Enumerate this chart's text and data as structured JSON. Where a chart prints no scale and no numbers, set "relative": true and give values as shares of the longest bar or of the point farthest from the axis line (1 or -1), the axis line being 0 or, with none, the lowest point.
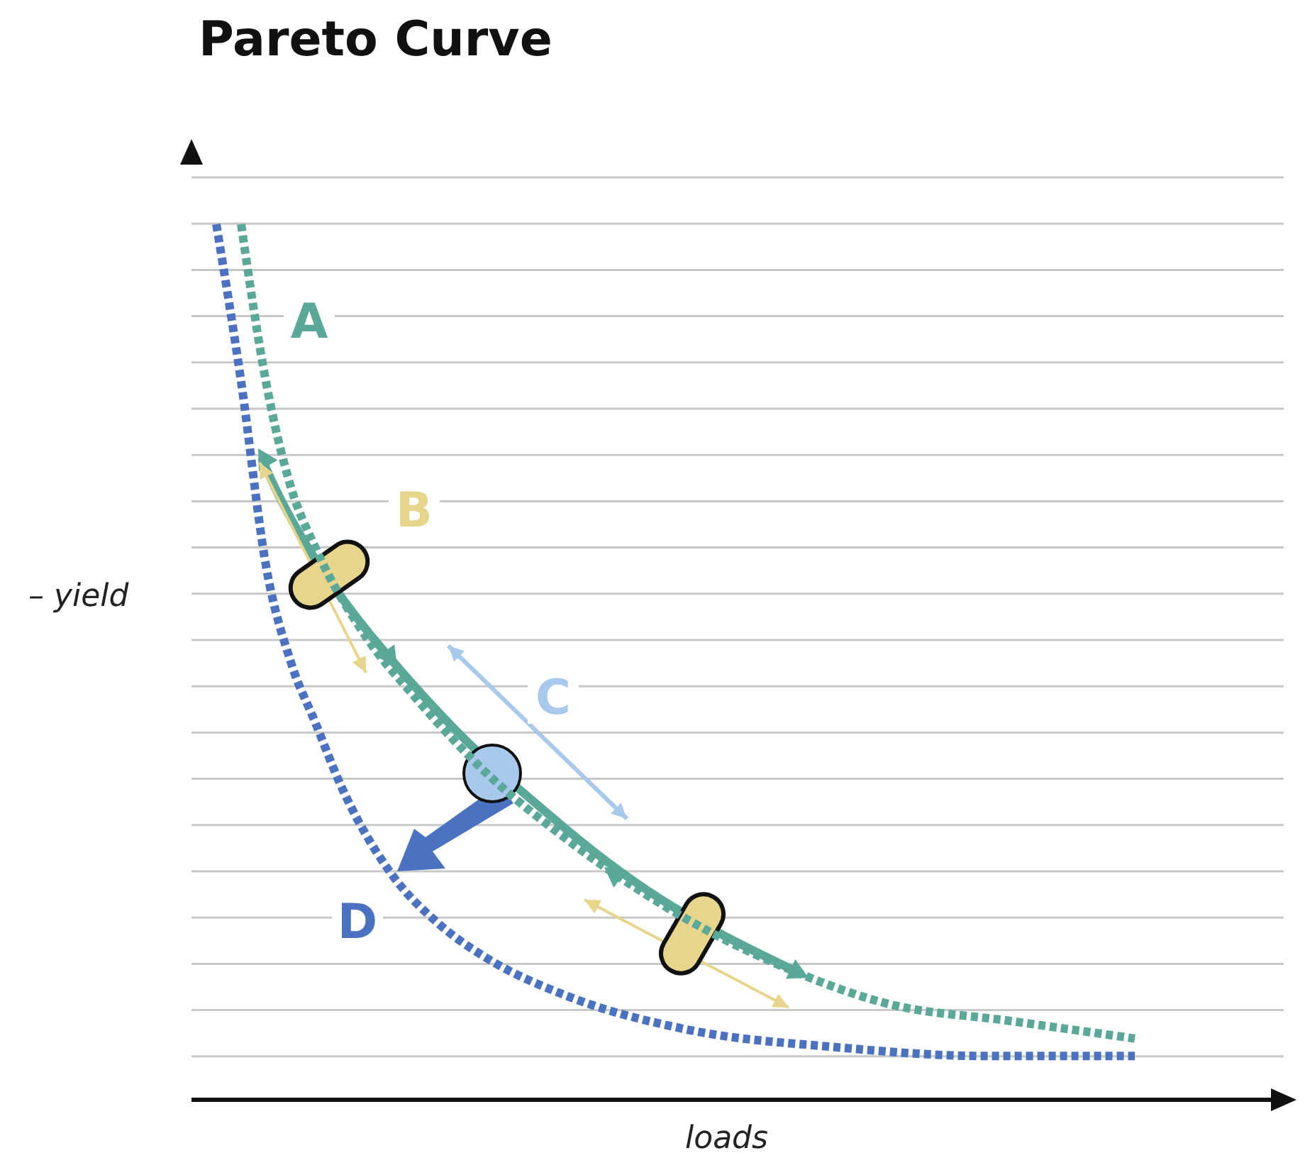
{
  "chart_data": {
    "type": "line",
    "title": "Pareto Curve",
    "xlabel": "loads",
    "ylabel": "– yield",
    "relative": true,
    "grid": "y",
    "marker": "none",
    "legend": false,
    "annotations": [
      "A",
      "B",
      "C",
      "D"
    ],
    "categories": [
      null,
      null,
      null,
      null,
      null,
      null,
      null,
      null,
      null,
      null,
      null,
      null,
      null,
      null,
      null,
      null,
      null,
      null,
      null,
      null,
      null,
      null,
      null,
      null,
      null,
      null,
      null,
      null,
      null,
      null,
      null,
      null,
      null,
      null,
      null,
      null,
      null,
      null,
      null,
      null,
      null,
      null,
      null,
      null,
      null
    ],
    "series": [
      {
        "color": "#4a72c0",
        "line_style": "dashed",
        "values": [
          null,
          1.0,
          0.82,
          0.61,
          0.5,
          0.43,
          0.36,
          null,
          0.26,
          null,
          0.2,
          null,
          0.16,
          null,
          null,
          0.12,
          null,
          null,
          null,
          null,
          0.08,
          null,
          null,
          null,
          null,
          null,
          0.06,
          null,
          null,
          null,
          null,
          null,
          0.05,
          null,
          null,
          null,
          null,
          null,
          0.05,
          null,
          null,
          null,
          null,
          null,
          null
        ]
      },
      {
        "color": "#5aa898",
        "line_style": "dashed",
        "values": [
          null,
          null,
          1.0,
          0.82,
          0.7,
          0.63,
          null,
          0.53,
          null,
          0.46,
          null,
          null,
          0.37,
          null,
          null,
          0.3,
          null,
          null,
          0.24,
          null,
          null,
          0.19,
          null,
          null,
          0.15,
          null,
          null,
          null,
          0.11,
          null,
          null,
          null,
          null,
          0.09,
          null,
          null,
          null,
          null,
          0.07,
          null,
          null,
          null,
          null,
          null,
          null
        ]
      }
    ]
  }
}
